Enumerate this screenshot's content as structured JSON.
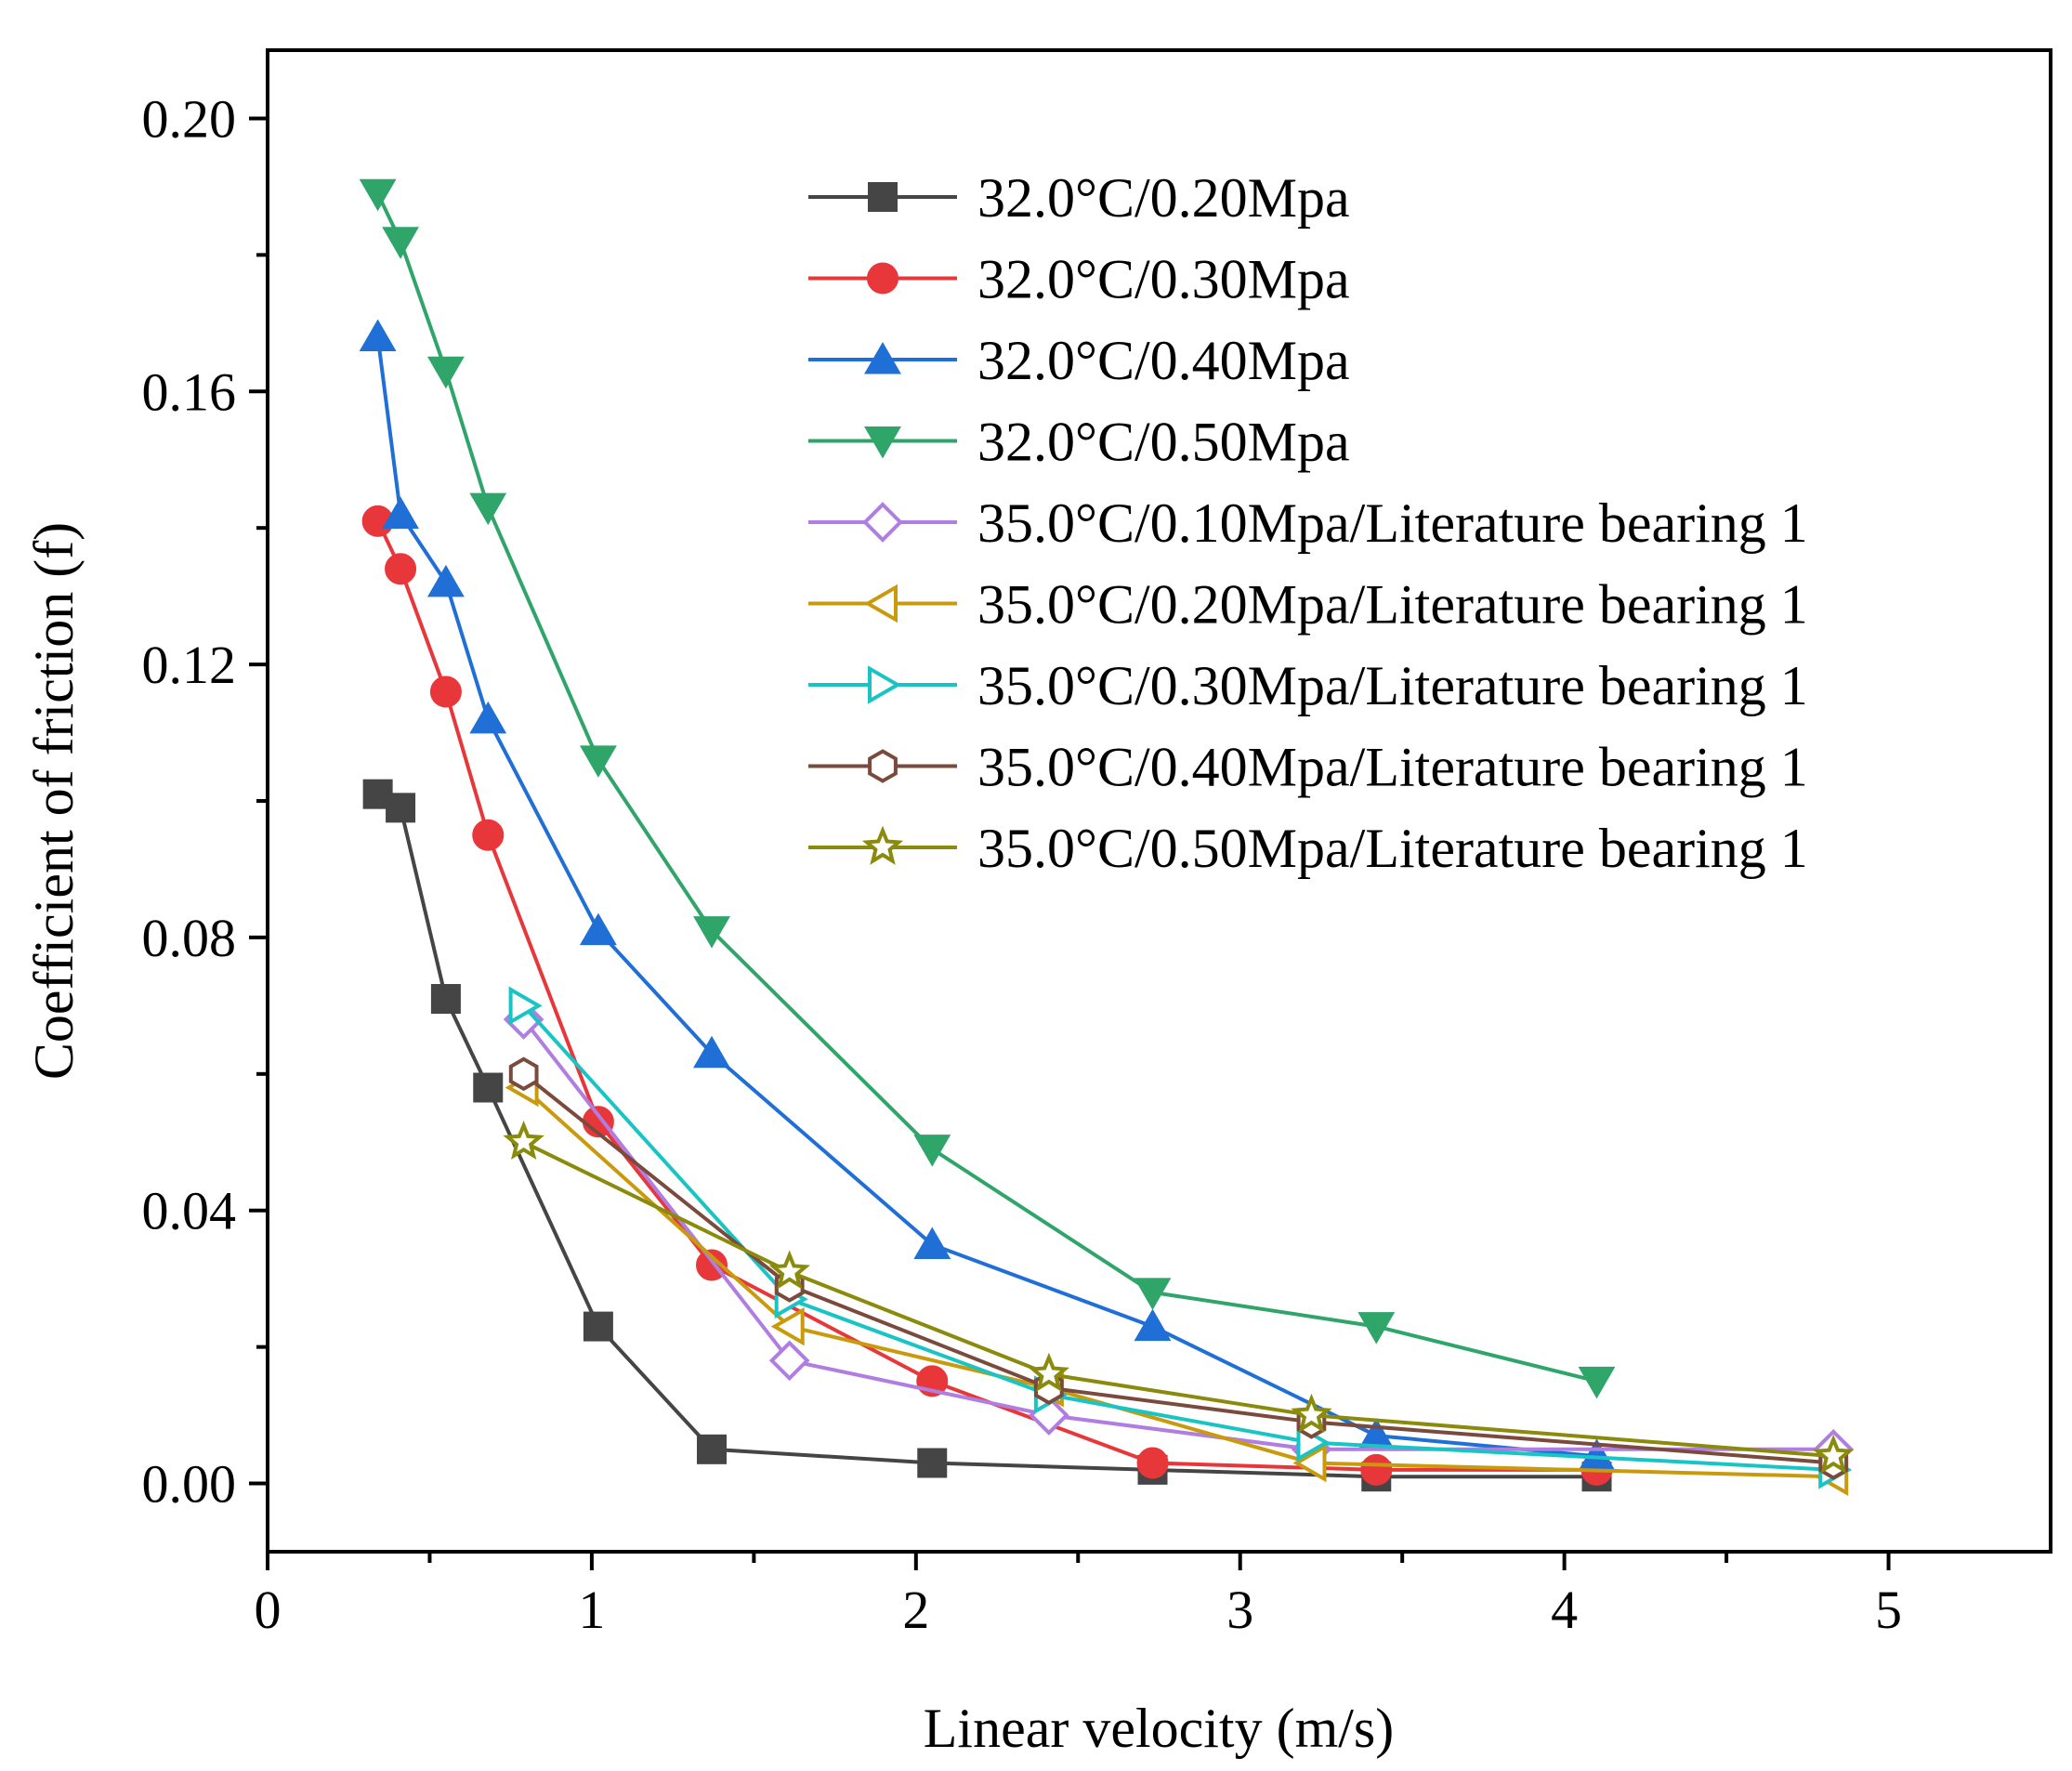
{
  "chart_data": {
    "type": "line",
    "title": "",
    "xlabel": "Linear velocity (m/s)",
    "ylabel": "Coefficient of friction (f)",
    "xlim": [
      0,
      5.5
    ],
    "ylim": [
      -0.01,
      0.21
    ],
    "xticks": [
      0,
      1,
      2,
      3,
      4,
      5
    ],
    "xtick_labels": [
      "0",
      "1",
      "2",
      "3",
      "4",
      "5"
    ],
    "yticks": [
      0.0,
      0.04,
      0.08,
      0.12,
      0.16,
      0.2
    ],
    "ytick_labels": [
      "0.00",
      "0.04",
      "0.08",
      "0.12",
      "0.16",
      "0.20"
    ],
    "grid": false,
    "legend_position": "top-right",
    "series": [
      {
        "name": "32.0°C/0.20Mpa",
        "color": "#454545",
        "marker": "square",
        "filled": true,
        "x": [
          0.34,
          0.41,
          0.55,
          0.68,
          1.02,
          1.37,
          2.05,
          2.73,
          3.42,
          4.1
        ],
        "y": [
          0.101,
          0.099,
          0.071,
          0.058,
          0.023,
          0.005,
          0.003,
          0.002,
          0.001,
          0.001
        ]
      },
      {
        "name": "32.0°C/0.30Mpa",
        "color": "#e8373a",
        "marker": "circle",
        "filled": true,
        "x": [
          0.34,
          0.41,
          0.55,
          0.68,
          1.02,
          1.37,
          2.05,
          2.73,
          3.42,
          4.1
        ],
        "y": [
          0.141,
          0.134,
          0.116,
          0.095,
          0.053,
          0.032,
          0.015,
          0.003,
          0.002,
          0.002
        ]
      },
      {
        "name": "32.0°C/0.40Mpa",
        "color": "#1f6fd6",
        "marker": "triangle-up",
        "filled": true,
        "x": [
          0.34,
          0.41,
          0.55,
          0.68,
          1.02,
          1.37,
          2.05,
          2.73,
          3.42,
          4.1
        ],
        "y": [
          0.168,
          0.142,
          0.132,
          0.112,
          0.081,
          0.063,
          0.035,
          0.023,
          0.007,
          0.004
        ]
      },
      {
        "name": "32.0°C/0.50Mpa",
        "color": "#2fa56a",
        "marker": "triangle-down",
        "filled": true,
        "x": [
          0.34,
          0.41,
          0.55,
          0.68,
          1.02,
          1.37,
          2.05,
          2.73,
          3.42,
          4.1
        ],
        "y": [
          0.189,
          0.182,
          0.163,
          0.143,
          0.106,
          0.081,
          0.049,
          0.028,
          0.023,
          0.015
        ]
      },
      {
        "name": "35.0°C/0.10Mpa/Literature bearing 1",
        "color": "#b07de0",
        "marker": "diamond",
        "filled": false,
        "x": [
          0.79,
          1.61,
          2.41,
          3.22,
          4.83
        ],
        "y": [
          0.068,
          0.018,
          0.01,
          0.005,
          0.005
        ]
      },
      {
        "name": "35.0°C/0.20Mpa/Literature bearing 1",
        "color": "#c99a0c",
        "marker": "triangle-left",
        "filled": false,
        "x": [
          0.79,
          1.61,
          2.41,
          3.22,
          4.83
        ],
        "y": [
          0.058,
          0.023,
          0.014,
          0.003,
          0.001
        ]
      },
      {
        "name": "35.0°C/0.30Mpa/Literature bearing 1",
        "color": "#18c4c4",
        "marker": "triangle-right",
        "filled": false,
        "x": [
          0.79,
          1.61,
          2.41,
          3.22,
          4.83
        ],
        "y": [
          0.07,
          0.027,
          0.013,
          0.006,
          0.002
        ]
      },
      {
        "name": "35.0°C/0.40Mpa/Literature bearing 1",
        "color": "#7a4a3c",
        "marker": "hexagon",
        "filled": false,
        "x": [
          0.79,
          1.61,
          2.41,
          3.22,
          4.83
        ],
        "y": [
          0.06,
          0.029,
          0.014,
          0.009,
          0.003
        ]
      },
      {
        "name": "35.0°C/0.50Mpa/Literature bearing 1",
        "color": "#8a8a0c",
        "marker": "star",
        "filled": false,
        "x": [
          0.79,
          1.61,
          2.41,
          3.22,
          4.83
        ],
        "y": [
          0.05,
          0.031,
          0.016,
          0.01,
          0.004
        ]
      }
    ]
  }
}
